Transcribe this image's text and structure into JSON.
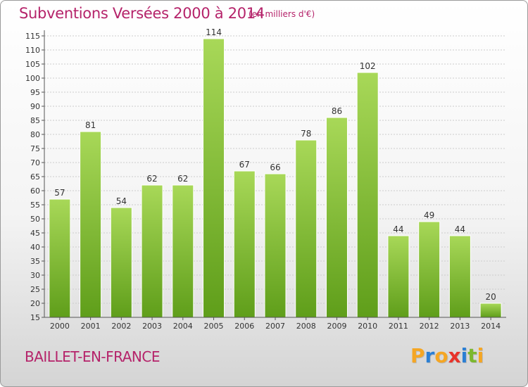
{
  "header": {
    "title": "Subventions Versées 2000 à 2014",
    "subtitle": "(en milliers d'€)"
  },
  "footer": {
    "place": "BAILLET-EN-FRANCE",
    "logo_letters": [
      "P",
      "r",
      "o",
      "x",
      "i",
      "t",
      "i"
    ],
    "logo_colors": [
      "#f5a623",
      "#2b7fd4",
      "#f5a623",
      "#e8332a",
      "#2b7fd4",
      "#7cb82f",
      "#f5a623"
    ]
  },
  "colors": {
    "title": "#b5236a",
    "bar_light": "#a8d858",
    "bar_dark": "#5f9e1a",
    "grid": "#cccccc"
  },
  "chart_data": {
    "type": "bar",
    "categories": [
      "2000",
      "2001",
      "2002",
      "2003",
      "2004",
      "2005",
      "2006",
      "2007",
      "2008",
      "2009",
      "2010",
      "2011",
      "2012",
      "2013",
      "2014"
    ],
    "values": [
      57,
      81,
      54,
      62,
      62,
      114,
      67,
      66,
      78,
      86,
      102,
      44,
      49,
      44,
      20
    ],
    "ylim": [
      15,
      115
    ],
    "yticks": [
      15,
      20,
      25,
      30,
      35,
      40,
      45,
      50,
      55,
      60,
      65,
      70,
      75,
      80,
      85,
      90,
      95,
      100,
      105,
      110,
      115
    ],
    "grid": true,
    "xlabel": "",
    "ylabel": ""
  }
}
